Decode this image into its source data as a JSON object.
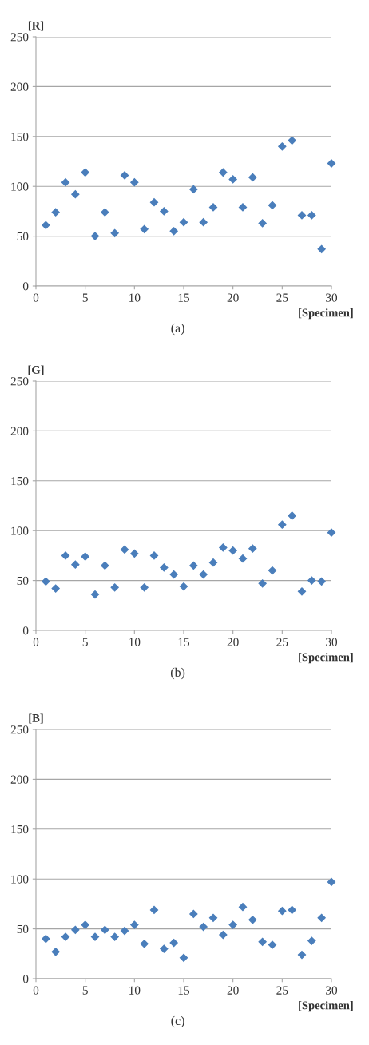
{
  "chart_data": [
    {
      "type": "scatter",
      "ylabel": "[R]",
      "xlabel": "[Specimen]",
      "annotations": [
        "(a)"
      ],
      "marker": "diamond",
      "grid": "y",
      "xlim": [
        0,
        30
      ],
      "xticks": [
        0,
        5,
        10,
        15,
        20,
        25,
        30
      ],
      "ylim": [
        0,
        250
      ],
      "yticks": [
        0,
        50,
        100,
        150,
        200,
        250
      ],
      "x": [
        1,
        2,
        3,
        4,
        5,
        6,
        7,
        8,
        9,
        10,
        11,
        12,
        13,
        14,
        15,
        16,
        17,
        18,
        19,
        20,
        21,
        22,
        23,
        24,
        25,
        26,
        27,
        28,
        29,
        30
      ],
      "series": [
        {
          "color": "#4a7ebb",
          "values": [
            61,
            74,
            104,
            92,
            114,
            50,
            74,
            53,
            111,
            104,
            57,
            84,
            75,
            55,
            64,
            97,
            64,
            79,
            114,
            107,
            79,
            109,
            63,
            81,
            140,
            146,
            71,
            71,
            37,
            123
          ]
        }
      ]
    },
    {
      "type": "scatter",
      "ylabel": "[G]",
      "xlabel": "[Specimen]",
      "annotations": [
        "(b)"
      ],
      "marker": "diamond",
      "grid": "y",
      "xlim": [
        0,
        30
      ],
      "xticks": [
        0,
        5,
        10,
        15,
        20,
        25,
        30
      ],
      "ylim": [
        0,
        250
      ],
      "yticks": [
        0,
        50,
        100,
        150,
        200,
        250
      ],
      "x": [
        1,
        2,
        3,
        4,
        5,
        6,
        7,
        8,
        9,
        10,
        11,
        12,
        13,
        14,
        15,
        16,
        17,
        18,
        19,
        20,
        21,
        22,
        23,
        24,
        25,
        26,
        27,
        28,
        29,
        30
      ],
      "series": [
        {
          "color": "#4a7ebb",
          "values": [
            49,
            42,
            75,
            66,
            74,
            36,
            65,
            43,
            81,
            77,
            43,
            75,
            63,
            56,
            44,
            65,
            56,
            68,
            83,
            80,
            72,
            82,
            47,
            60,
            106,
            115,
            39,
            50,
            49,
            98
          ]
        }
      ]
    },
    {
      "type": "scatter",
      "ylabel": "[B]",
      "xlabel": "[Specimen]",
      "annotations": [
        "(c)"
      ],
      "marker": "diamond",
      "grid": "y",
      "xlim": [
        0,
        30
      ],
      "xticks": [
        0,
        5,
        10,
        15,
        20,
        25,
        30
      ],
      "ylim": [
        0,
        250
      ],
      "yticks": [
        0,
        50,
        100,
        150,
        200,
        250
      ],
      "x": [
        1,
        2,
        3,
        4,
        5,
        6,
        7,
        8,
        9,
        10,
        11,
        12,
        13,
        14,
        15,
        16,
        17,
        18,
        19,
        20,
        21,
        22,
        23,
        24,
        25,
        26,
        27,
        28,
        29,
        30
      ],
      "series": [
        {
          "color": "#4a7ebb",
          "values": [
            40,
            27,
            42,
            49,
            54,
            42,
            49,
            42,
            48,
            54,
            35,
            69,
            30,
            36,
            21,
            65,
            52,
            61,
            44,
            54,
            72,
            59,
            37,
            34,
            68,
            69,
            24,
            38,
            61,
            97
          ]
        }
      ]
    }
  ]
}
